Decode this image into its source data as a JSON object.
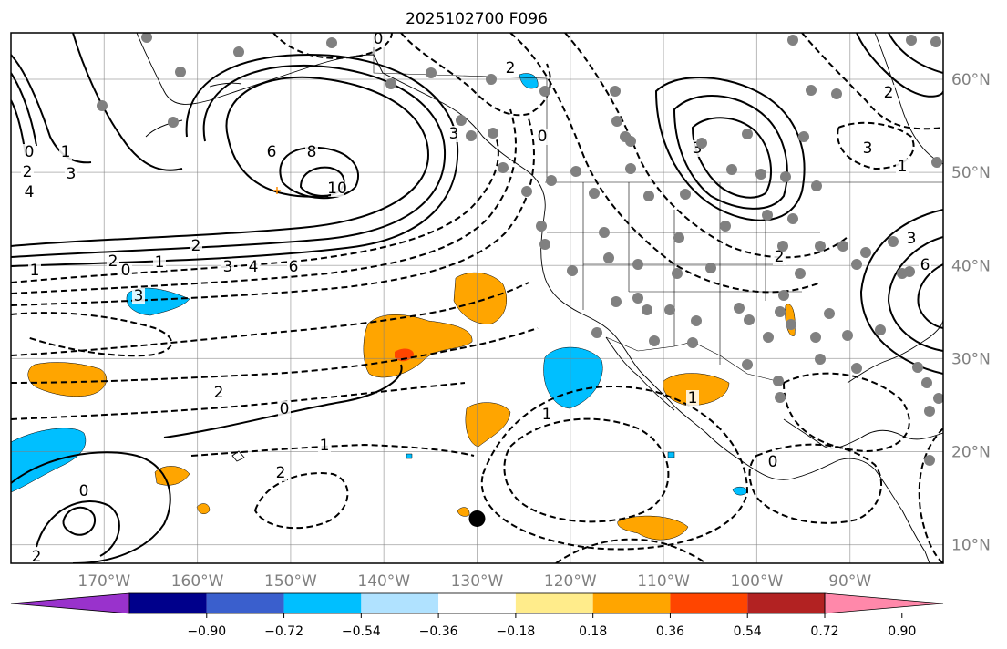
{
  "title": "2025102700 F096",
  "map": {
    "lon_range": [
      -180,
      -80
    ],
    "lat_range": [
      8,
      65
    ],
    "lon_ticks": [
      {
        "value": -170,
        "label": "170°W"
      },
      {
        "value": -160,
        "label": "160°W"
      },
      {
        "value": -150,
        "label": "150°W"
      },
      {
        "value": -140,
        "label": "140°W"
      },
      {
        "value": -130,
        "label": "130°W"
      },
      {
        "value": -120,
        "label": "120°W"
      },
      {
        "value": -110,
        "label": "110°W"
      },
      {
        "value": -100,
        "label": "100°W"
      },
      {
        "value": -90,
        "label": "90°W"
      }
    ],
    "lat_ticks": [
      {
        "value": 60,
        "label": "60°N"
      },
      {
        "value": 50,
        "label": "50°N"
      },
      {
        "value": 40,
        "label": "40°N"
      },
      {
        "value": 30,
        "label": "30°N"
      },
      {
        "value": 20,
        "label": "20°N"
      },
      {
        "value": 10,
        "label": "10°N"
      }
    ],
    "contour_labels": [
      "0",
      "1",
      "2",
      "3",
      "4",
      "6",
      "8",
      "10",
      "2",
      "1",
      "3",
      "0",
      "1",
      "2",
      "3",
      "4",
      "6",
      "0",
      "2",
      "0",
      "3",
      "1",
      "2",
      "0",
      "1",
      "2",
      "0",
      "2",
      "1",
      "2",
      "3",
      "3",
      "2",
      "1",
      "0",
      "6",
      "3"
    ],
    "marker": {
      "name": "black-dot",
      "lon": -130,
      "lat": 12.8
    }
  },
  "colorbar": {
    "ticks": [
      "−0.90",
      "−0.72",
      "−0.54",
      "−0.36",
      "−0.18",
      "0.18",
      "0.36",
      "0.54",
      "0.72",
      "0.90"
    ],
    "colors": [
      "#9932cc",
      "#00008b",
      "#3a5fcd",
      "#00bfff",
      "#b0e2ff",
      "#ffffff",
      "#ffec8b",
      "#ffa500",
      "#ff4500",
      "#b22222",
      "#ff88aa"
    ]
  }
}
